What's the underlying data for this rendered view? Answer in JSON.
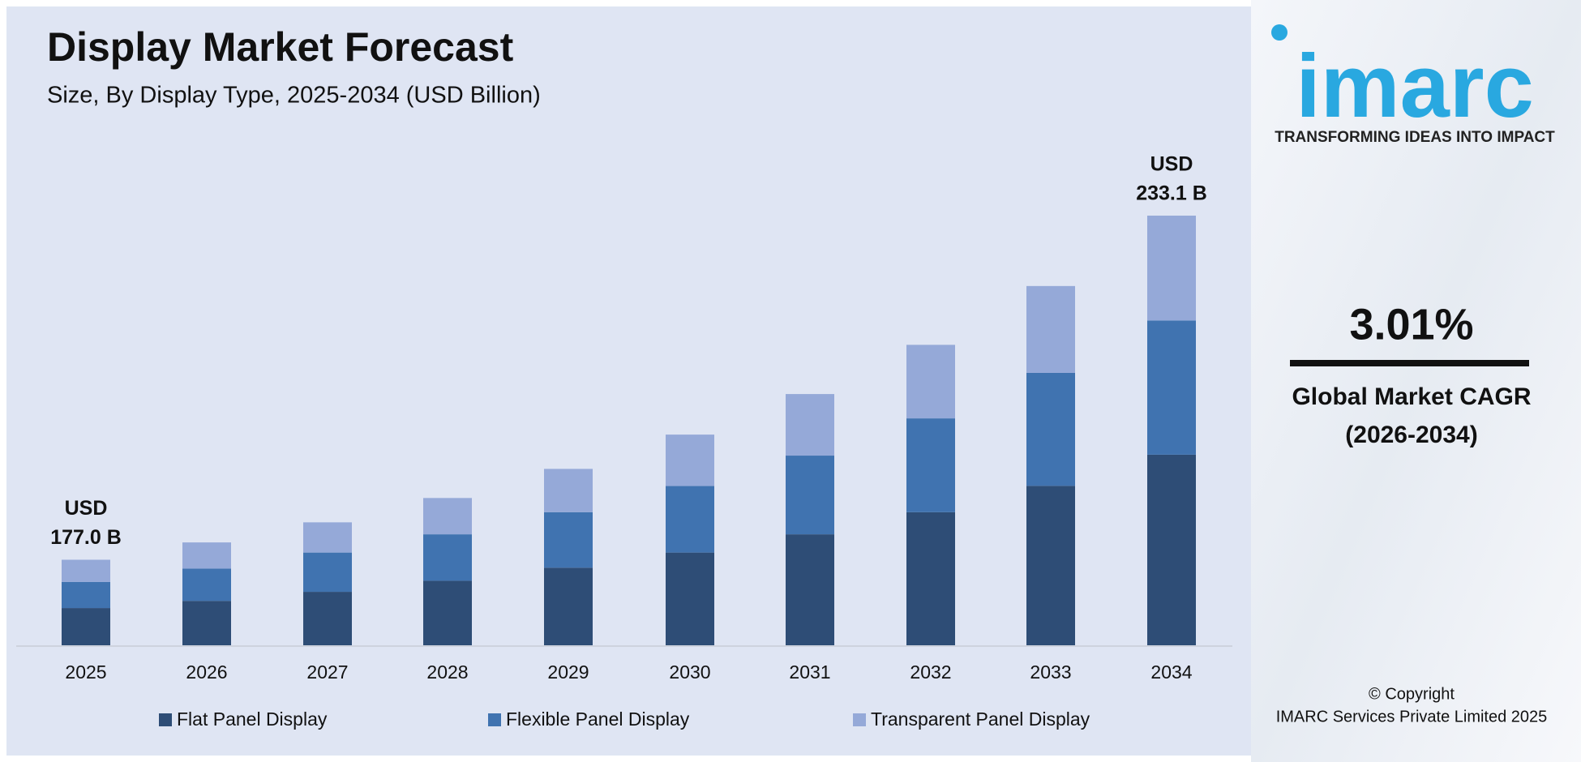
{
  "chart_data": {
    "type": "bar",
    "stacked": true,
    "title": "Display Market Forecast",
    "subtitle": "Size, By Display Type, 2025-2034 (USD Billion)",
    "categories": [
      "2025",
      "2026",
      "2027",
      "2028",
      "2029",
      "2030",
      "2031",
      "2032",
      "2033",
      "2034"
    ],
    "series": [
      {
        "name": "Flat Panel Display",
        "color": "#2e4d76",
        "values": [
          20.2,
          24.1,
          29.0,
          35.0,
          42.1,
          50.3,
          60.2,
          72.2,
          86.5,
          103.4
        ]
      },
      {
        "name": "Flexible Panel Display",
        "color": "#4073b0",
        "values": [
          14.2,
          17.5,
          21.3,
          25.2,
          30.1,
          36.1,
          42.7,
          50.9,
          61.3,
          72.8
        ]
      },
      {
        "name": "Transparent Panel Display",
        "color": "#95a9d8",
        "values": [
          12.0,
          14.2,
          16.4,
          19.7,
          23.5,
          27.9,
          33.4,
          39.9,
          47.1,
          56.9
        ]
      }
    ],
    "annotations": [
      [
        "USD",
        "177.0 B"
      ],
      [
        "USD",
        "233.1 B"
      ]
    ],
    "legend": "bottom"
  },
  "sidebar": {
    "logo": "imarc",
    "tagline": "TRANSFORMING IDEAS INTO IMPACT",
    "cagr": "3.01%",
    "cagr_label": [
      "Global Market CAGR",
      "(2026-2034)"
    ],
    "copyright": [
      "© Copyright",
      "IMARC Services Private Limited 2025"
    ]
  }
}
